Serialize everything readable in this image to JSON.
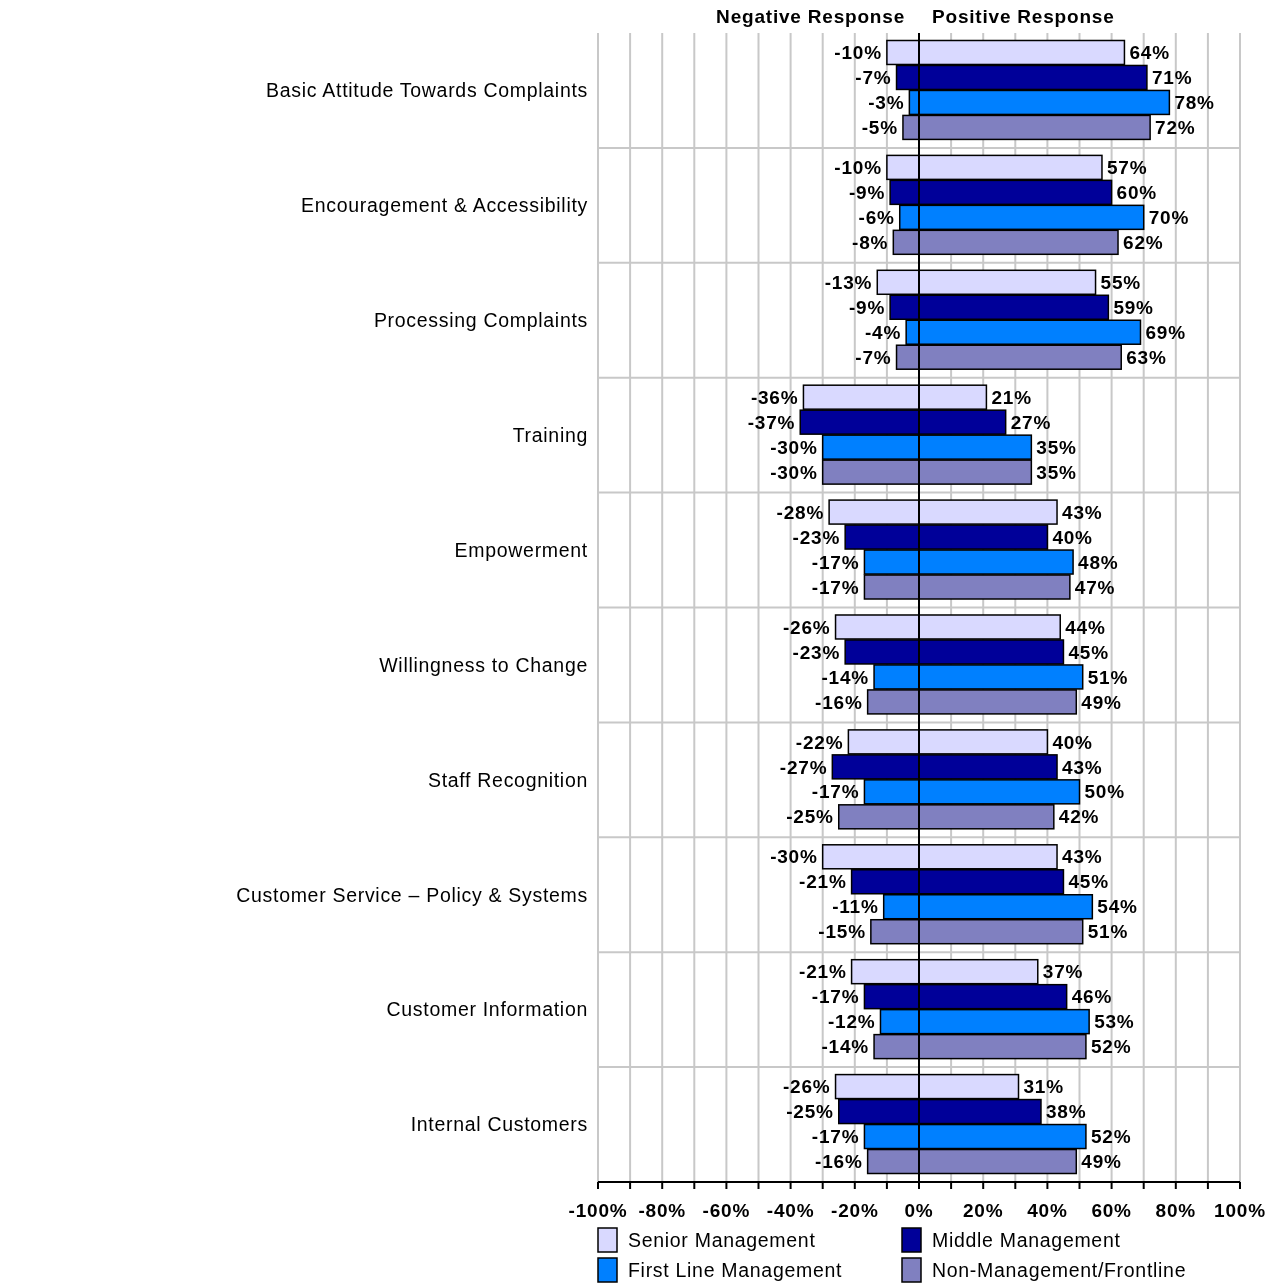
{
  "chart_data": [
    {
      "type": "bar",
      "orientation": "horizontal",
      "title": "Negative Response",
      "categories": [
        "Basic Attitude Towards Complaints",
        "Encouragement & Accessibility",
        "Processing Complaints",
        "Training",
        "Empowerment",
        "Willingness to Change",
        "Staff Recognition",
        "Customer Service – Policy & Systems",
        "Customer Information",
        "Internal Customers"
      ],
      "series": [
        {
          "name": "Senior Management",
          "color": "#d9d9ff",
          "values": [
            -10,
            -10,
            -13,
            -36,
            -28,
            -26,
            -22,
            -30,
            -21,
            -26
          ],
          "value_labels": [
            "-10%",
            "-10%",
            "-13%",
            "-36%",
            "-28%",
            "-26%",
            "-22%",
            "-30%",
            "-21%",
            "-26%"
          ]
        },
        {
          "name": "Middle Management",
          "color": "#000099",
          "values": [
            -7,
            -9,
            -9,
            -37,
            -23,
            -23,
            -27,
            -21,
            -17,
            -25
          ],
          "value_labels": [
            "-7%",
            "-9%",
            "-9%",
            "-37%",
            "-23%",
            "-23%",
            "-27%",
            "-21%",
            "-17%",
            "-25%"
          ]
        },
        {
          "name": "First Line Management",
          "color": "#0080ff",
          "values": [
            -3,
            -6,
            -4,
            -30,
            -17,
            -14,
            -17,
            -11,
            -12,
            -17
          ],
          "value_labels": [
            "-3%",
            "-6%",
            "-4%",
            "-30%",
            "-17%",
            "-14%",
            "-17%",
            "-11%",
            "-12%",
            "-17%"
          ]
        },
        {
          "name": "Non-Management/Frontline",
          "color": "#8080c0",
          "values": [
            -5,
            -8,
            -7,
            -30,
            -17,
            -16,
            -25,
            -15,
            -14,
            -16
          ],
          "value_labels": [
            "-5%",
            "-8%",
            "-7%",
            "-30%",
            "-17%",
            "-16%",
            "-25%",
            "-15%",
            "-14%",
            "-16%"
          ]
        }
      ],
      "xlim": [
        -100,
        0
      ],
      "xticks": [
        {
          "value": -100,
          "label": "-100%"
        },
        {
          "value": -90,
          "label": null
        },
        {
          "value": -80,
          "label": "-80%"
        },
        {
          "value": -70,
          "label": null
        },
        {
          "value": -60,
          "label": "-60%"
        },
        {
          "value": -50,
          "label": null
        },
        {
          "value": -40,
          "label": "-40%"
        },
        {
          "value": -30,
          "label": null
        },
        {
          "value": -20,
          "label": "-20%"
        },
        {
          "value": -10,
          "label": null
        },
        {
          "value": 0,
          "label": "0%"
        }
      ],
      "grid": true,
      "legend": "bottom"
    },
    {
      "type": "bar",
      "orientation": "horizontal",
      "title": "Positive Response",
      "categories": [
        null,
        null,
        null,
        null,
        null,
        null,
        null,
        null,
        null,
        null
      ],
      "series": [
        {
          "color": "#d9d9ff",
          "values": [
            64,
            57,
            55,
            21,
            43,
            44,
            40,
            43,
            37,
            31
          ],
          "value_labels": [
            "64%",
            "57%",
            "55%",
            "21%",
            "43%",
            "44%",
            "40%",
            "43%",
            "37%",
            "31%"
          ]
        },
        {
          "color": "#000099",
          "values": [
            71,
            60,
            59,
            27,
            40,
            45,
            43,
            45,
            46,
            38
          ],
          "value_labels": [
            "71%",
            "60%",
            "59%",
            "27%",
            "40%",
            "45%",
            "43%",
            "45%",
            "46%",
            "38%"
          ]
        },
        {
          "color": "#0080ff",
          "values": [
            78,
            70,
            69,
            35,
            48,
            51,
            50,
            54,
            53,
            52
          ],
          "value_labels": [
            "78%",
            "70%",
            "69%",
            "35%",
            "48%",
            "51%",
            "50%",
            "54%",
            "53%",
            "52%"
          ]
        },
        {
          "color": "#8080c0",
          "values": [
            72,
            62,
            63,
            35,
            47,
            49,
            42,
            51,
            52,
            49
          ],
          "value_labels": [
            "72%",
            "62%",
            "63%",
            "35%",
            "47%",
            "49%",
            "42%",
            "51%",
            "52%",
            "49%"
          ]
        }
      ],
      "xlim": [
        0,
        100
      ],
      "xticks": [
        {
          "value": 10,
          "label": null
        },
        {
          "value": 20,
          "label": "20%"
        },
        {
          "value": 30,
          "label": null
        },
        {
          "value": 40,
          "label": "40%"
        },
        {
          "value": 50,
          "label": null
        },
        {
          "value": 60,
          "label": "60%"
        },
        {
          "value": 70,
          "label": null
        },
        {
          "value": 80,
          "label": "80%"
        },
        {
          "value": 90,
          "label": null
        },
        {
          "value": 100,
          "label": "100%"
        }
      ],
      "grid": true
    }
  ]
}
